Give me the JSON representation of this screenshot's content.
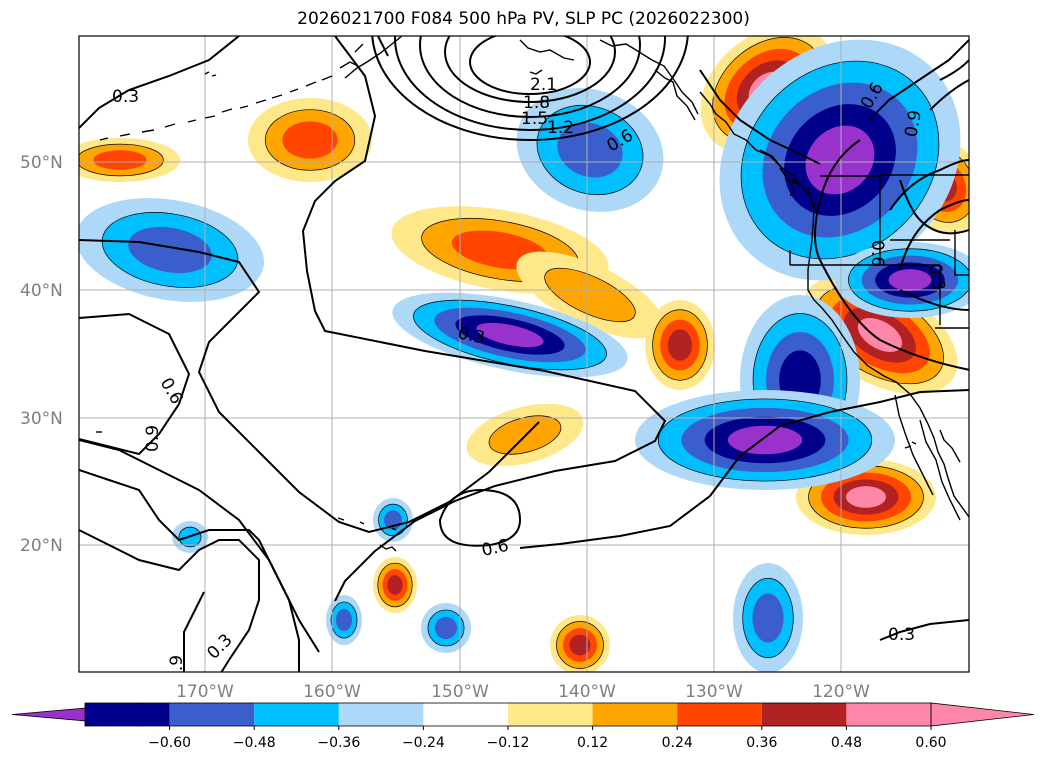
{
  "title": "2026021700 F084 500 hPa PV, SLP PC (2026022300)",
  "lat_labels": [
    "50°N",
    "40°N",
    "30°N",
    "20°N"
  ],
  "lon_labels": [
    "170°W",
    "160°W",
    "150°W",
    "140°W",
    "130°W",
    "120°W"
  ],
  "colorbar": {
    "ticks": [
      "−0.60",
      "−0.48",
      "−0.36",
      "−0.24",
      "−0.12",
      "0.12",
      "0.24",
      "0.36",
      "0.48",
      "0.60"
    ],
    "colors": [
      "#9932cc",
      "#00008b",
      "#3a5fcd",
      "#00bfff",
      "#add8f8",
      "#ffffff",
      "#fee88a",
      "#ffa500",
      "#ff4500",
      "#b22222",
      "#ff88aa"
    ]
  },
  "contour_labels": [
    "0.3",
    "0.6",
    "0.9",
    "1.2",
    "1.5",
    "1.8",
    "2.1",
    "0.6",
    "0.3",
    "0.6",
    "0.6",
    "0.3",
    "0.3",
    "0.6",
    "0.9",
    "0.3",
    "0.9"
  ],
  "colors": {
    "coast": "#000000",
    "grid": "#b0b0b0",
    "contour": "#000000"
  }
}
